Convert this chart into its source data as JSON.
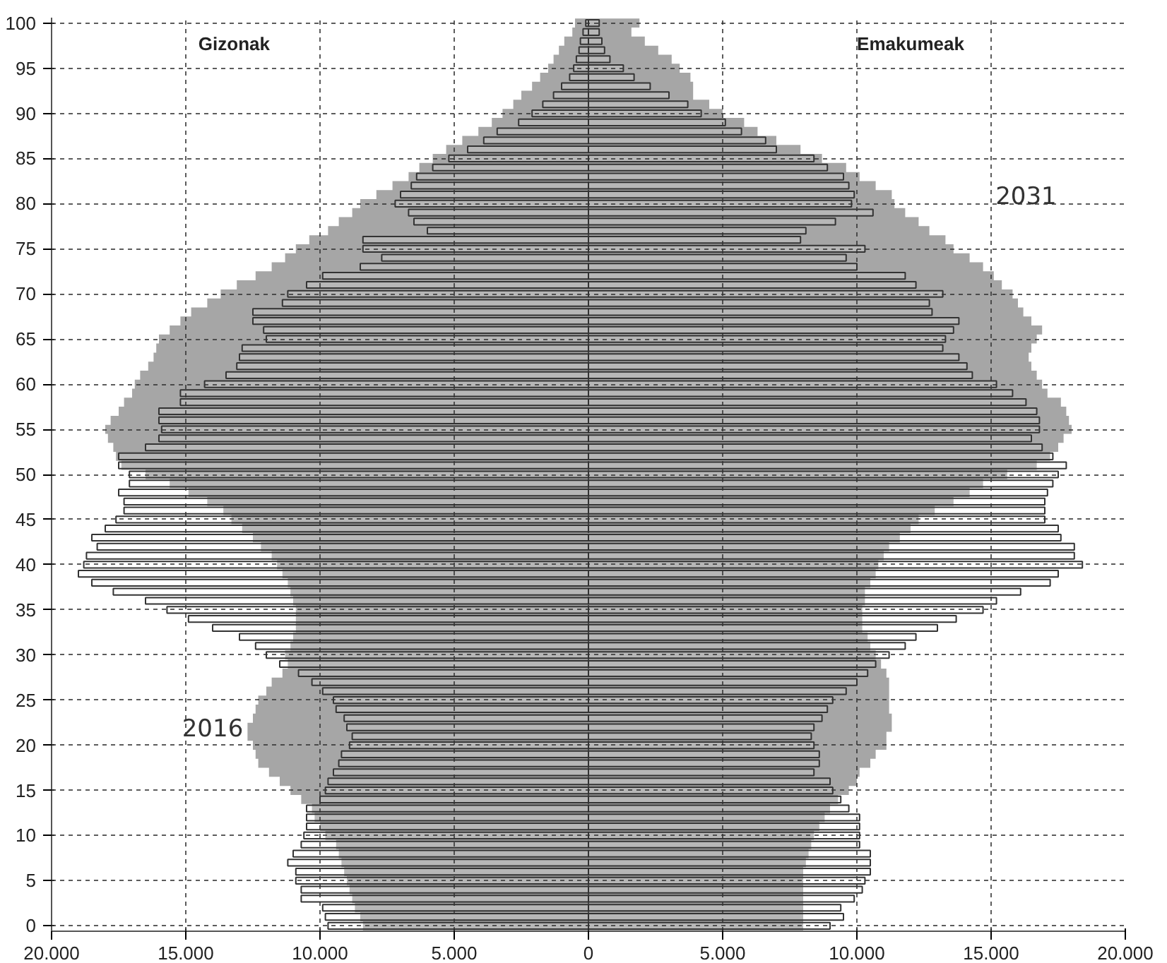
{
  "chart_data": {
    "type": "bar",
    "orientation": "horizontal",
    "categories": [
      "100",
      null,
      null,
      null,
      null,
      "95",
      null,
      null,
      null,
      null,
      "90",
      null,
      null,
      null,
      null,
      "85",
      null,
      null,
      null,
      null,
      "80",
      null,
      null,
      null,
      null,
      "75",
      null,
      null,
      null,
      null,
      "70",
      null,
      null,
      null,
      null,
      "65",
      null,
      null,
      null,
      null,
      "60",
      null,
      null,
      null,
      null,
      "55",
      null,
      null,
      null,
      null,
      "50",
      null,
      null,
      null,
      null,
      "45",
      null,
      null,
      null,
      null,
      "40",
      null,
      null,
      null,
      null,
      "35",
      null,
      null,
      null,
      null,
      "30",
      null,
      null,
      null,
      null,
      "25",
      null,
      null,
      null,
      null,
      "20",
      null,
      null,
      null,
      null,
      "15",
      null,
      null,
      null,
      null,
      "10",
      null,
      null,
      null,
      null,
      "5",
      null,
      null,
      null,
      null,
      "0"
    ],
    "series": [
      {
        "name": "2016",
        "color": "#ffffff",
        "values": [
          -100,
          -200,
          -300,
          -350,
          -450,
          -550,
          -700,
          -1000,
          -1300,
          -1700,
          -2100,
          -2600,
          -3400,
          -3900,
          -4500,
          -5200,
          -5800,
          -6400,
          -6600,
          -7000,
          -7200,
          -6700,
          -6500,
          -6000,
          -8400,
          -8400,
          -7700,
          -8500,
          -9900,
          -10500,
          -11200,
          -11400,
          -12500,
          -12500,
          -12100,
          -12000,
          -12900,
          -13000,
          -13100,
          -13500,
          -14300,
          -15200,
          -15200,
          -16000,
          -16000,
          -15900,
          -16000,
          -16500,
          -17500,
          -17500,
          -17100,
          -17100,
          -17500,
          -17300,
          -17300,
          -17600,
          -18000,
          -18500,
          -18300,
          -18700,
          -18800,
          -19000,
          -18500,
          -17700,
          -16500,
          -15700,
          -14900,
          -14000,
          -13000,
          -12400,
          -12000,
          -11500,
          -10800,
          -10300,
          -9900,
          -9500,
          -9400,
          -9100,
          -9000,
          -8800,
          -8900,
          -9200,
          -9300,
          -9500,
          -9700,
          -9800,
          -10000,
          -10500,
          -10500,
          -10500,
          -10600,
          -10700,
          -11000,
          -11200,
          -10900,
          -10900,
          -10700,
          -10700,
          -9900,
          -9800,
          -9700
        ]
      },
      {
        "color": "#ffffff",
        "values": [
          400,
          400,
          500,
          600,
          800,
          1300,
          1700,
          2300,
          3000,
          3700,
          4200,
          5100,
          5700,
          6600,
          7000,
          8400,
          8900,
          9500,
          9700,
          9900,
          9800,
          10600,
          9200,
          8100,
          7900,
          10300,
          9600,
          10000,
          11800,
          12200,
          13200,
          12700,
          12800,
          13800,
          13600,
          13300,
          13200,
          13800,
          14100,
          14300,
          15200,
          15800,
          16300,
          16700,
          16800,
          16800,
          16500,
          16900,
          17300,
          17800,
          17500,
          17300,
          17100,
          17000,
          17000,
          17000,
          17500,
          17600,
          18100,
          18100,
          18400,
          17500,
          17200,
          16100,
          15200,
          14700,
          13700,
          13000,
          12200,
          11800,
          11200,
          10700,
          10400,
          10000,
          9600,
          9100,
          8900,
          8700,
          8400,
          8300,
          8400,
          8600,
          8600,
          8400,
          9000,
          9100,
          9400,
          9700,
          10100,
          10100,
          10100,
          10100,
          10500,
          10500,
          10500,
          10300,
          10200,
          9900,
          9400,
          9500,
          9000
        ]
      },
      {
        "type": "area",
        "color": "#a6a6a6",
        "values": [
          -500,
          -600,
          -900,
          -1100,
          -1300,
          -1500,
          -1800,
          -2100,
          -2500,
          -2800,
          -3200,
          -3600,
          -4100,
          -4700,
          -5300,
          -5800,
          -6300,
          -6700,
          -7300,
          -7900,
          -8500,
          -8800,
          -9300,
          -9700,
          -10400,
          -10900,
          -11300,
          -11800,
          -12400,
          -13100,
          -13700,
          -14200,
          -14800,
          -15200,
          -15600,
          -16000,
          -16100,
          -16200,
          -16400,
          -16700,
          -16900,
          -17000,
          -17300,
          -17500,
          -17800,
          -18000,
          -17900,
          -17700,
          -17600,
          -17400,
          -16500,
          -15600,
          -14900,
          -14200,
          -13600,
          -13300,
          -12900,
          -12500,
          -12200,
          -11800,
          -11600,
          -11400,
          -11200,
          -11100,
          -11000,
          -10900,
          -10900,
          -10900,
          -11000,
          -11100,
          -11300,
          -11200,
          -11400,
          -11800,
          -12000,
          -12300,
          -12400,
          -12500,
          -12700,
          -12700,
          -12500,
          -12400,
          -12300,
          -11900,
          -11500,
          -11100,
          -10700,
          -10300,
          -10200,
          -10000,
          -9800,
          -9400,
          -9300,
          -9200,
          -9100,
          -9000,
          -8900,
          -8800,
          -8700,
          -8500,
          -8400
        ]
      },
      {
        "name": "2031",
        "type": "area",
        "color": "#a6a6a6",
        "values": [
          1900,
          1600,
          2100,
          2600,
          3100,
          3400,
          3800,
          3900,
          3900,
          4500,
          5000,
          5800,
          6300,
          7000,
          7900,
          8700,
          9600,
          10100,
          10700,
          11300,
          11400,
          11800,
          12300,
          12700,
          13300,
          13600,
          14200,
          14700,
          15100,
          15400,
          15800,
          16000,
          16200,
          16500,
          16900,
          16700,
          16500,
          16400,
          16500,
          16700,
          16900,
          17100,
          17600,
          17800,
          17900,
          18000,
          17700,
          17500,
          17200,
          16700,
          15600,
          14700,
          14200,
          13600,
          12900,
          12300,
          12000,
          11600,
          11200,
          11000,
          10800,
          10700,
          10500,
          10300,
          10300,
          10200,
          10200,
          10200,
          10400,
          10500,
          10700,
          10900,
          11100,
          11200,
          11200,
          11200,
          11200,
          11300,
          11300,
          11100,
          11100,
          10700,
          10500,
          10100,
          10000,
          9700,
          9300,
          9000,
          8800,
          8600,
          8400,
          8300,
          8200,
          8100,
          8000,
          8000,
          8000,
          8000,
          8000,
          8000,
          8000
        ]
      }
    ],
    "xlim": [
      -20000,
      20000
    ],
    "xticks": [
      {
        "value": -20000,
        "label": "20.000"
      },
      {
        "value": -15000,
        "label": "15.000"
      },
      {
        "value": -10000,
        "label": "10.000"
      },
      {
        "value": -5000,
        "label": "5.000"
      },
      0,
      {
        "value": 5000,
        "label": "5.000"
      },
      {
        "value": 10000,
        "label": "10.000"
      },
      {
        "value": 15000,
        "label": "15.000"
      },
      {
        "value": 20000,
        "label": "20.000"
      }
    ],
    "annotations": [
      "Gizonak",
      "Emakumeak"
    ],
    "grid": true
  }
}
